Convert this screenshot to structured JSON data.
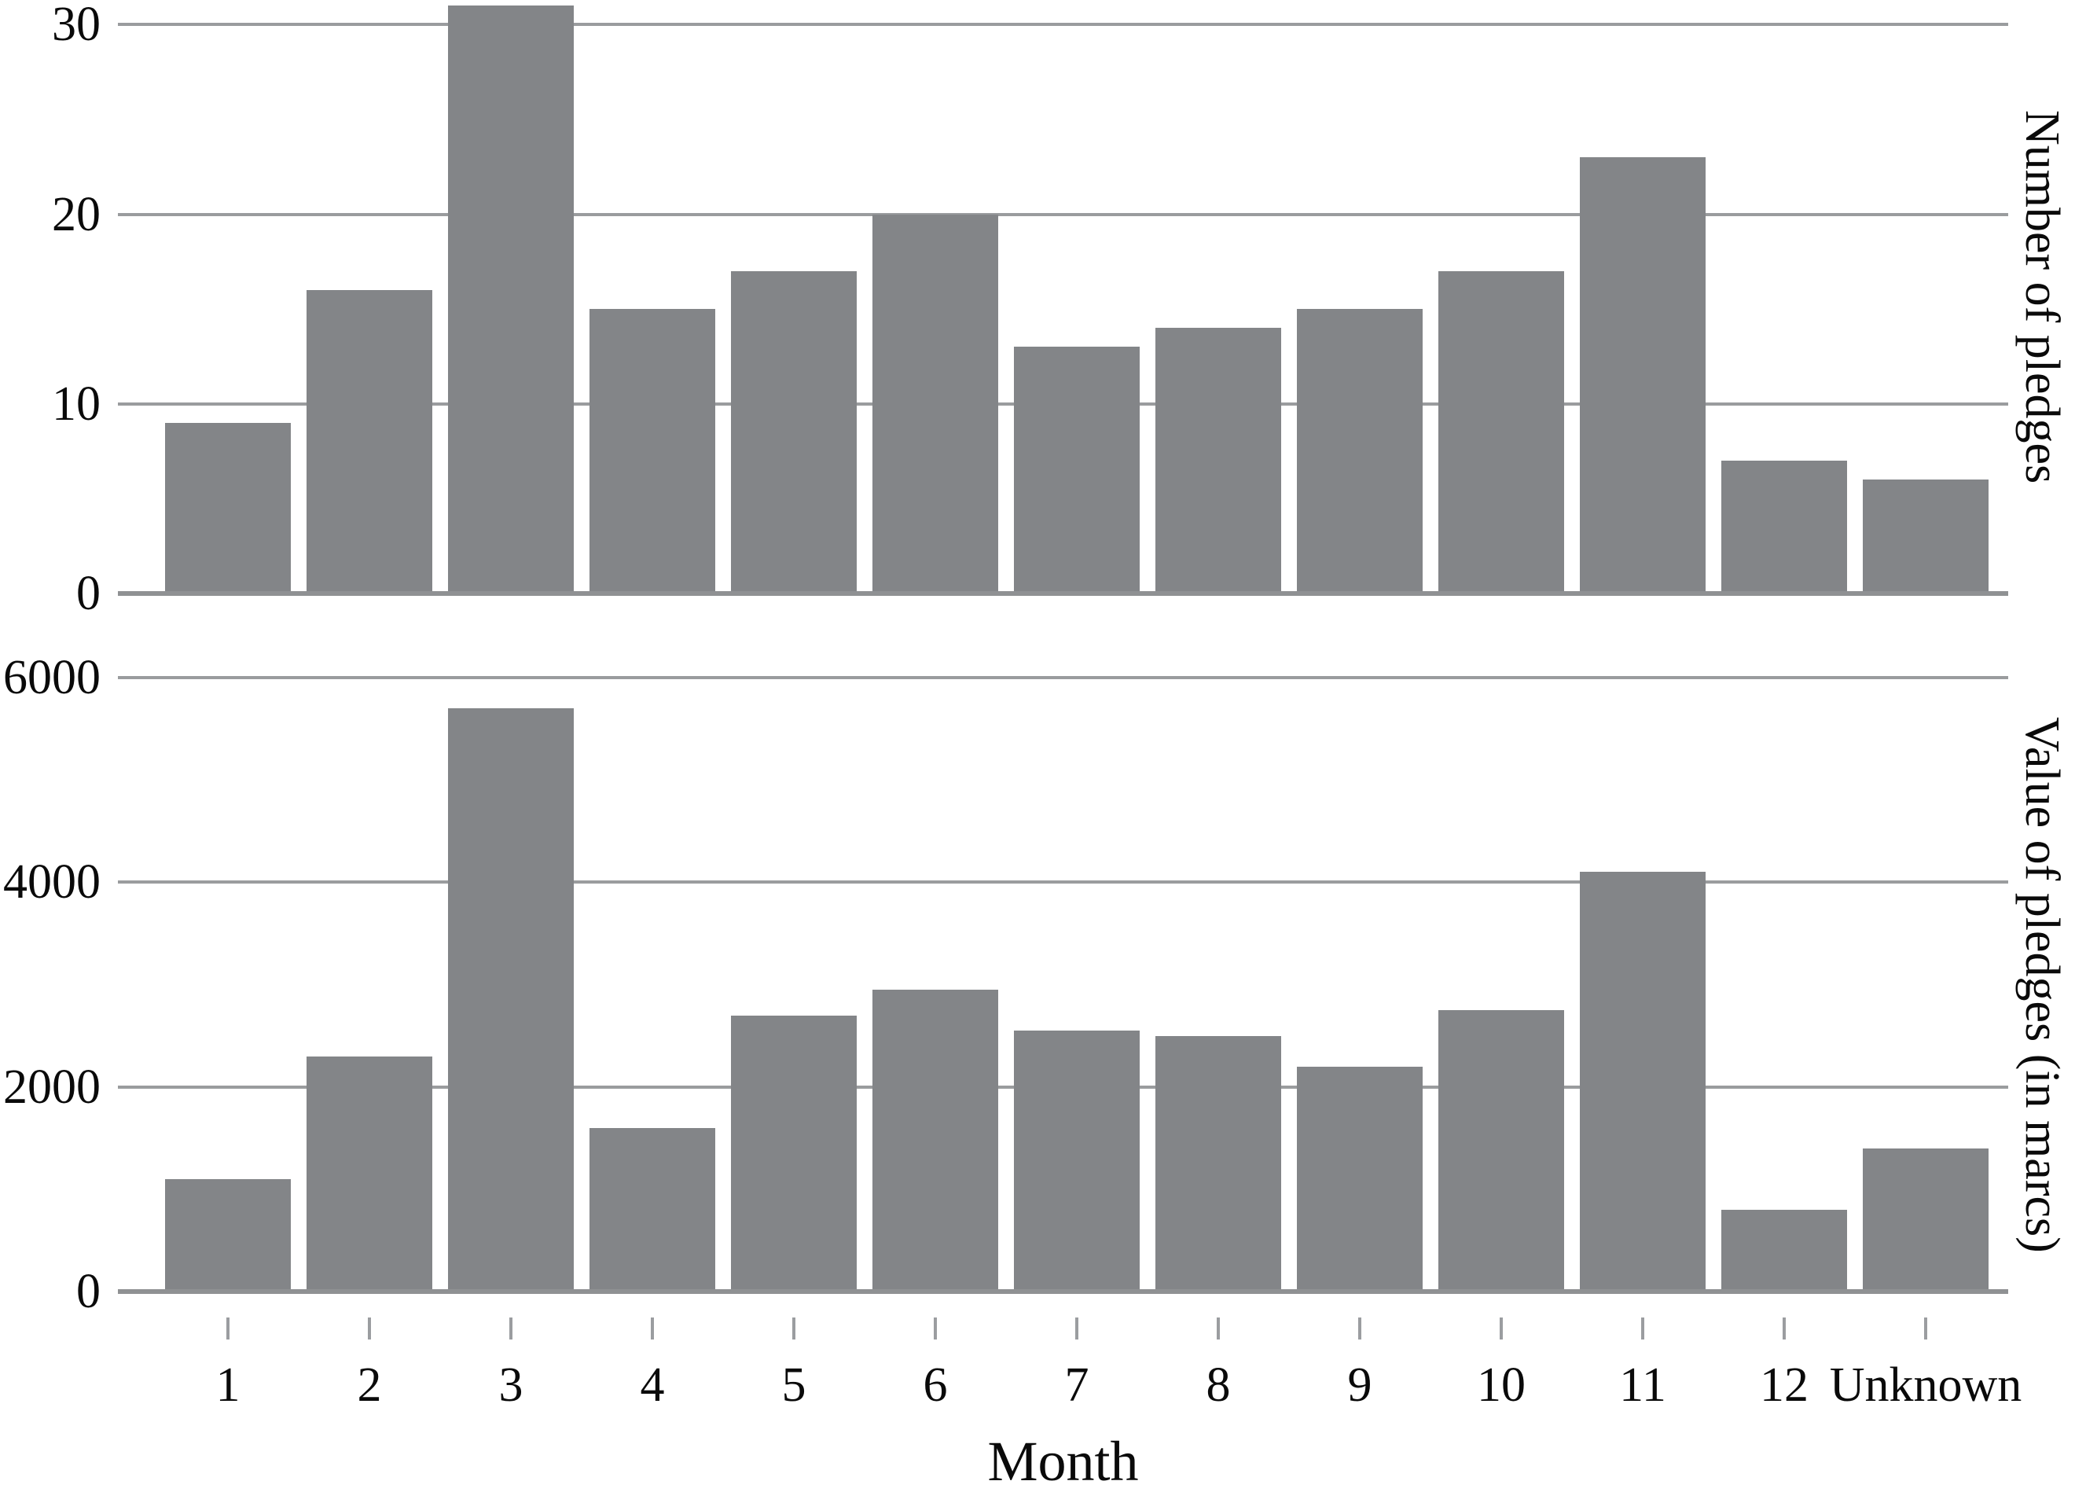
{
  "colors": {
    "background": "#ffffff",
    "bar": "#838588",
    "gridline": "#9a9c9e",
    "axis_line": "#8f9193",
    "tick": "#9b9da0",
    "text": "#0a0a0a"
  },
  "x_axis": {
    "label": "Month",
    "categories": [
      "1",
      "2",
      "3",
      "4",
      "5",
      "6",
      "7",
      "8",
      "9",
      "10",
      "11",
      "12",
      "Unknown"
    ]
  },
  "chart_data": [
    {
      "type": "bar",
      "ylabel": "Number of pledges",
      "xlabel": "Month",
      "categories": [
        "1",
        "2",
        "3",
        "4",
        "5",
        "6",
        "7",
        "8",
        "9",
        "10",
        "11",
        "12",
        "Unknown"
      ],
      "values": [
        9,
        16,
        31,
        15,
        17,
        20,
        13,
        14,
        15,
        17,
        23,
        7,
        6
      ],
      "yticks": [
        0,
        10,
        20,
        30
      ],
      "ylim": [
        0,
        31.3
      ],
      "grid": true,
      "legend": false,
      "bar_color": "#838588"
    },
    {
      "type": "bar",
      "ylabel": "Value of pledges (in marcs)",
      "xlabel": "Month",
      "categories": [
        "1",
        "2",
        "3",
        "4",
        "5",
        "6",
        "7",
        "8",
        "9",
        "10",
        "11",
        "12",
        "Unknown"
      ],
      "values": [
        1100,
        2300,
        5700,
        1600,
        2700,
        2950,
        2550,
        2500,
        2200,
        2750,
        4100,
        800,
        1400
      ],
      "yticks": [
        0,
        2000,
        4000,
        6000
      ],
      "ylim": [
        0,
        6000
      ],
      "grid": true,
      "legend": false,
      "bar_color": "#838588"
    }
  ]
}
